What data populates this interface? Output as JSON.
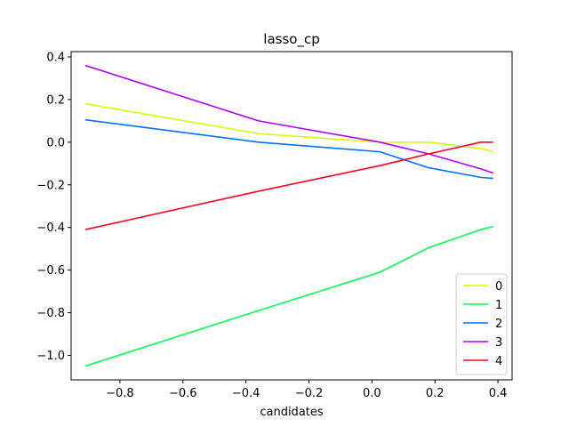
{
  "chart_data": {
    "type": "line",
    "title": "lasso_cp",
    "xlabel": "candidates",
    "ylabel": "",
    "xlim": [
      -0.955,
      0.445
    ],
    "ylim": [
      -1.115,
      0.425
    ],
    "xticks": [
      -0.8,
      -0.6,
      -0.4,
      -0.2,
      0.0,
      0.2,
      0.4
    ],
    "xtick_labels": [
      "−0.8",
      "−0.6",
      "−0.4",
      "−0.2",
      "0.0",
      "0.2",
      "0.4"
    ],
    "yticks": [
      0.4,
      0.2,
      0.0,
      -0.2,
      -0.4,
      -0.6,
      -0.8,
      -1.0
    ],
    "ytick_labels": [
      "0.4",
      "0.2",
      "0.0",
      "−0.2",
      "−0.4",
      "−0.6",
      "−0.8",
      "−1.0"
    ],
    "grid": false,
    "legend_position": "bottom-right",
    "x": [
      -0.91,
      -0.36,
      0.025,
      0.18,
      0.345,
      0.385
    ],
    "series": [
      {
        "name": "0",
        "color": "#d4ff00",
        "values": [
          0.18,
          0.04,
          0.0,
          0.0,
          -0.03,
          -0.045
        ]
      },
      {
        "name": "1",
        "color": "#00ff55",
        "values": [
          -1.05,
          -0.79,
          -0.61,
          -0.495,
          -0.41,
          -0.395
        ]
      },
      {
        "name": "2",
        "color": "#0070ff",
        "values": [
          0.105,
          0.0,
          -0.045,
          -0.12,
          -0.165,
          -0.17
        ]
      },
      {
        "name": "3",
        "color": "#b000ff",
        "values": [
          0.36,
          0.1,
          0.0,
          -0.055,
          -0.125,
          -0.145
        ]
      },
      {
        "name": "4",
        "color": "#ff0022",
        "values": [
          -0.41,
          -0.23,
          -0.11,
          -0.055,
          0.0,
          0.0
        ]
      }
    ]
  }
}
